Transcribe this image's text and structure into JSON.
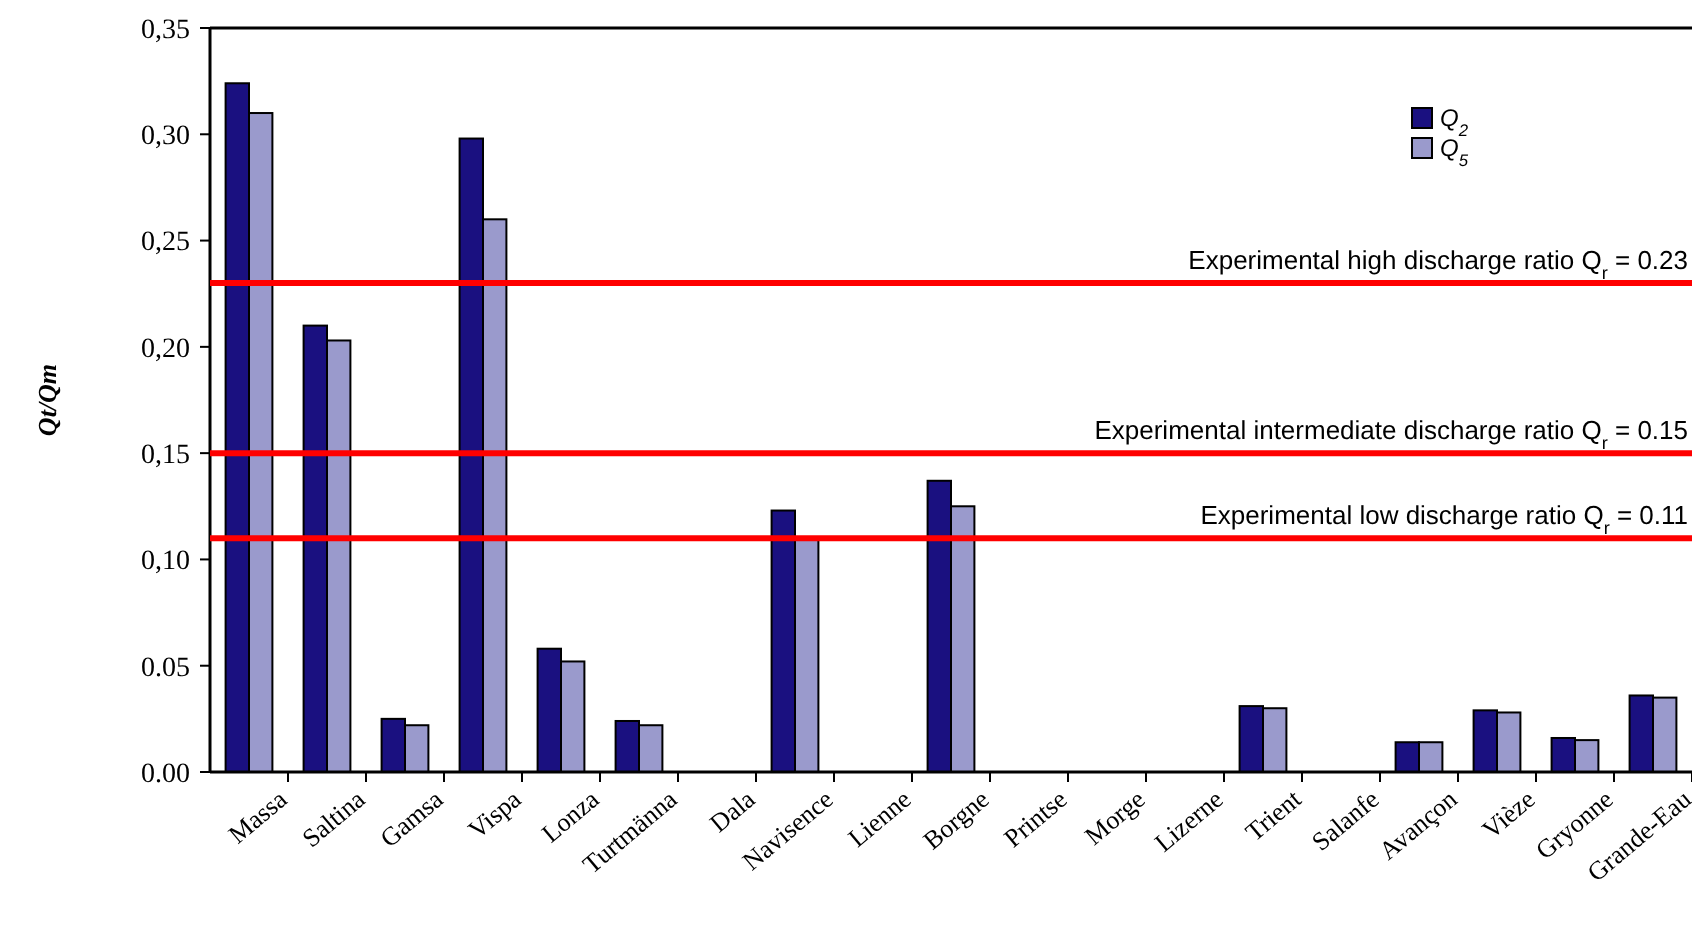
{
  "chart_data": {
    "type": "bar",
    "ylabel": "Qt/Qm",
    "categories": [
      "Massa",
      "Saltina",
      "Gamsa",
      "Vispa",
      "Lonza",
      "Turtmänna",
      "Dala",
      "Navisence",
      "Lienne",
      "Borgne",
      "Printse",
      "Morge",
      "Lizerne",
      "Trient",
      "Salanfe",
      "Avançon",
      "Vièze",
      "Gryonne",
      "Grande-Eau"
    ],
    "series": [
      {
        "name": "Q$_{2}$",
        "color": "#1a1080",
        "values": [
          0.324,
          0.21,
          0.025,
          0.298,
          0.058,
          0.024,
          null,
          0.123,
          null,
          0.137,
          null,
          null,
          null,
          0.031,
          null,
          0.014,
          0.029,
          0.016,
          0.036
        ]
      },
      {
        "name": "Q$_{5}$",
        "color": "#9a9acc",
        "values": [
          0.31,
          0.203,
          0.022,
          0.26,
          0.052,
          0.022,
          null,
          0.11,
          null,
          0.125,
          null,
          null,
          null,
          0.03,
          null,
          0.014,
          0.028,
          0.015,
          0.035
        ]
      }
    ],
    "ylim": [
      0,
      0.35
    ],
    "yticks": [
      {
        "value": 0,
        "label": "0.00"
      },
      {
        "value": 0.05,
        "label": "0.05"
      },
      {
        "value": 0.1,
        "label": "0,10"
      },
      {
        "value": 0.15,
        "label": "0,15"
      },
      {
        "value": 0.2,
        "label": "0,20"
      },
      {
        "value": 0.25,
        "label": "0,25"
      },
      {
        "value": 0.3,
        "label": "0,30"
      },
      {
        "value": 0.35,
        "label": "0,35"
      }
    ],
    "ref_lines": [
      {
        "axis": "y",
        "value": 0.23,
        "label": "Experimental high discharge ratio Q$_{r}$ = 0.23",
        "color": "#ff0000"
      },
      {
        "axis": "y",
        "value": 0.15,
        "label": "Experimental intermediate discharge ratio Q$_{r}$ = 0.15",
        "color": "#ff0000"
      },
      {
        "axis": "y",
        "value": 0.11,
        "label": "Experimental low discharge ratio Q$_{r}$ = 0.11",
        "color": "#ff0000"
      }
    ],
    "grid": false,
    "legend": "top right"
  }
}
